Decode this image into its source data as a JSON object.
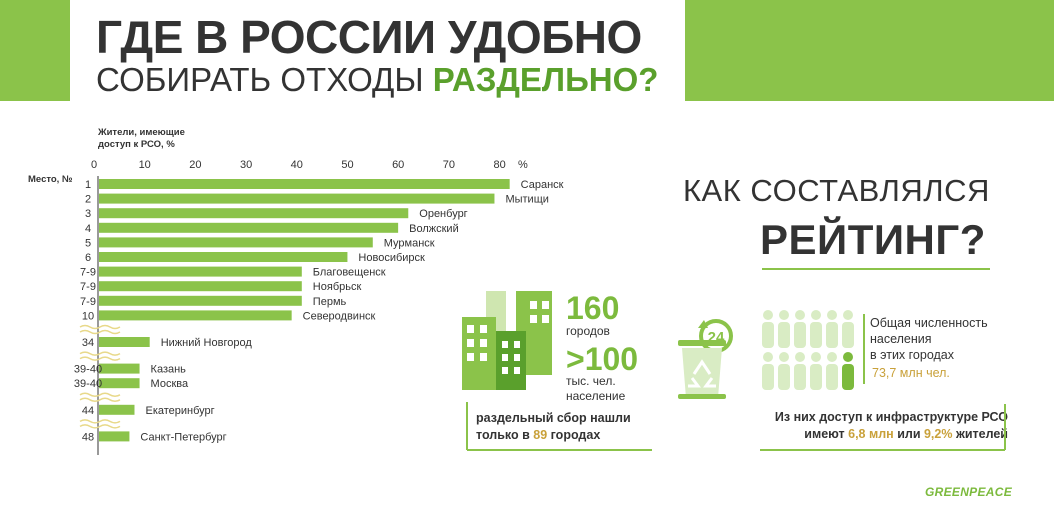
{
  "header": {
    "title_line1": "ГДЕ В РОССИИ УДОБНО",
    "title_line2_part1": "СОБИРАТЬ ОТХОДЫ ",
    "title_line2_accent": "РАЗДЕЛЬНО?",
    "colors": {
      "band": "#8bc34a",
      "accent": "#5aa02c"
    }
  },
  "chart_data": {
    "type": "bar",
    "orientation": "horizontal",
    "title": "",
    "ylabel_line1": "Жители, имеющие",
    "ylabel_line2": "доступ к РСО, %",
    "xunit": "%",
    "rank_label": "Место, №",
    "xlim": [
      0,
      80
    ],
    "xticks": [
      0,
      10,
      20,
      30,
      40,
      50,
      60,
      70,
      80
    ],
    "bar_color": "#8bc34a",
    "rows": [
      {
        "rank": "1",
        "city": "Саранск",
        "value": 81
      },
      {
        "rank": "2",
        "city": "Мытищи",
        "value": 78
      },
      {
        "rank": "3",
        "city": "Оренбург",
        "value": 61
      },
      {
        "rank": "4",
        "city": "Волжский",
        "value": 59
      },
      {
        "rank": "5",
        "city": "Мурманск",
        "value": 54
      },
      {
        "rank": "6",
        "city": "Новосибирск",
        "value": 49
      },
      {
        "rank": "7-9",
        "city": "Благовещенск",
        "value": 40
      },
      {
        "rank": "7-9",
        "city": "Ноябрьск",
        "value": 40
      },
      {
        "rank": "7-9",
        "city": "Пермь",
        "value": 40
      },
      {
        "rank": "10",
        "city": "Северодвинск",
        "value": 38
      },
      {
        "rank": "34",
        "city": "Нижний Новгород",
        "value": 10,
        "gap_before": true
      },
      {
        "rank": "39-40",
        "city": "Казань",
        "value": 8,
        "gap_before": true
      },
      {
        "rank": "39-40",
        "city": "Москва",
        "value": 8
      },
      {
        "rank": "44",
        "city": "Екатеринбург",
        "value": 7,
        "gap_before": true
      },
      {
        "rank": "48",
        "city": "Санкт-Петербург",
        "value": 6,
        "gap_before": true
      }
    ]
  },
  "method": {
    "title_line1": "КАК СОСТАВЛЯЛСЯ",
    "title_line2": "РЕЙТИНГ?",
    "cities_count": "160",
    "cities_label": "городов",
    "population_min": ">100",
    "population_label_line1": "тыс. чел.",
    "population_label_line2": "население",
    "found_line1": "раздельный сбор нашли",
    "found_line2_prefix": "только в ",
    "found_count": "89",
    "found_line2_suffix": " городах",
    "bin_icon_number": "24",
    "pop_text_line1": "Общая численность",
    "pop_text_line2": "населения",
    "pop_text_line3": "в этих городах",
    "pop_value": "73,7 млн чел.",
    "access_line1": "Из них доступ к инфраструктуре РСО",
    "access_prefix": "имеют ",
    "access_millions": "6,8 млн",
    "access_mid": " или ",
    "access_percent": "9,2%",
    "access_suffix": " жителей",
    "colors": {
      "stat": "#7cba3d",
      "highlight": "#c9a13a",
      "building": "#8bc34a"
    }
  },
  "footer": {
    "logo": "GREENPEACE"
  }
}
